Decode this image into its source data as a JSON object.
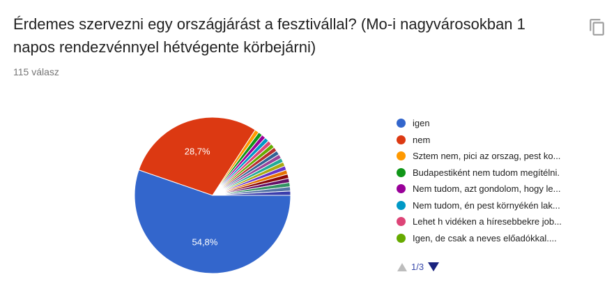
{
  "question": {
    "title": "Érdemes szervezni egy országjárást a fesztivállal? (Mo-i nagyvárosokban 1 napos rendezvénnyel hétvégente körbejárni)",
    "response_count": "115 válasz",
    "copy_icon": "copy-icon"
  },
  "chart_data": {
    "type": "pie",
    "slices": [
      {
        "label": "igen",
        "value": 54.8,
        "display": "54,8%",
        "color": "#3366cc"
      },
      {
        "label": "nem",
        "value": 28.7,
        "display": "28,7%",
        "color": "#dc3912"
      },
      {
        "label": "Sztem nem, pici az orszag, pest ko...",
        "value": 0.87,
        "display": "",
        "color": "#ff9900"
      },
      {
        "label": "Budapestiként nem tudom megítélni.",
        "value": 0.87,
        "display": "",
        "color": "#109618"
      },
      {
        "label": "Nem tudom, azt gondolom, hogy le...",
        "value": 0.87,
        "display": "",
        "color": "#990099"
      },
      {
        "label": "Nem tudom, én pest környékén lak...",
        "value": 0.87,
        "display": "",
        "color": "#0099c6"
      },
      {
        "label": "Lehet h vidéken a híresebbekre job...",
        "value": 0.87,
        "display": "",
        "color": "#dd4477"
      },
      {
        "label": "Igen, de csak a neves előadókkal....",
        "value": 0.87,
        "display": "",
        "color": "#66aa00"
      },
      {
        "label": "",
        "value": 0.87,
        "display": "",
        "color": "#b82e2e"
      },
      {
        "label": "",
        "value": 0.87,
        "display": "",
        "color": "#316395"
      },
      {
        "label": "",
        "value": 0.87,
        "display": "",
        "color": "#994499"
      },
      {
        "label": "",
        "value": 0.87,
        "display": "",
        "color": "#22aa99"
      },
      {
        "label": "",
        "value": 0.87,
        "display": "",
        "color": "#aaaa11"
      },
      {
        "label": "",
        "value": 0.87,
        "display": "",
        "color": "#6633cc"
      },
      {
        "label": "",
        "value": 0.87,
        "display": "",
        "color": "#e67300"
      },
      {
        "label": "",
        "value": 0.87,
        "display": "",
        "color": "#8b0707"
      },
      {
        "label": "",
        "value": 0.87,
        "display": "",
        "color": "#651067"
      },
      {
        "label": "",
        "value": 0.87,
        "display": "",
        "color": "#329262"
      },
      {
        "label": "",
        "value": 0.87,
        "display": "",
        "color": "#5574a6"
      },
      {
        "label": "",
        "value": 0.87,
        "display": "",
        "color": "#3b3eac"
      }
    ],
    "legend_visible_count": 8,
    "legend_placement": "right"
  },
  "pager": {
    "label": "1/3",
    "prev_icon": "triangle-up-icon",
    "next_icon": "triangle-down-icon"
  }
}
